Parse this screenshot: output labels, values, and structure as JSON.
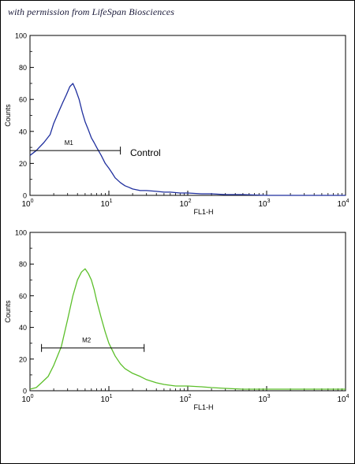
{
  "credit": "with permission from LifeSpan Biosciences",
  "chart_data": [
    {
      "type": "line",
      "xscale": "log",
      "xlim": [
        1,
        10000
      ],
      "ylim": [
        0,
        100
      ],
      "xlabel": "FL1-H",
      "ylabel": "Counts",
      "xticks": [
        "10",
        "10",
        "10",
        "10",
        "10"
      ],
      "xtick_exps": [
        "0",
        "1",
        "2",
        "3",
        "4"
      ],
      "yticks": [
        "0",
        "20",
        "40",
        "60",
        "80",
        "100"
      ],
      "series": [
        {
          "name": "Control",
          "color": "#1f2f9e",
          "x": [
            1,
            1.2,
            1.5,
            1.8,
            2.0,
            2.3,
            2.6,
            2.9,
            3.2,
            3.5,
            3.8,
            4.2,
            4.6,
            5.0,
            5.5,
            6.0,
            6.5,
            7.0,
            8.0,
            9.0,
            10,
            11,
            12,
            14,
            16,
            18,
            20,
            25,
            30,
            40,
            50,
            60,
            80,
            100,
            150,
            200,
            300,
            500,
            1000,
            10000
          ],
          "y": [
            25,
            28,
            33,
            38,
            45,
            52,
            58,
            63,
            68,
            70,
            66,
            60,
            52,
            46,
            41,
            36,
            33,
            30,
            25,
            20,
            17,
            14,
            11,
            8,
            6,
            5,
            4,
            3,
            3,
            2.5,
            2,
            2,
            1.5,
            1.5,
            1,
            1,
            0.5,
            0.5,
            0,
            0
          ]
        }
      ],
      "markers": [
        {
          "label": "M1",
          "x_start": 1,
          "x_end": 14,
          "y": 28
        }
      ],
      "annotations": [
        {
          "text": "Control"
        }
      ]
    },
    {
      "type": "line",
      "xscale": "log",
      "xlim": [
        1,
        10000
      ],
      "ylim": [
        0,
        100
      ],
      "xlabel": "FL1-H",
      "ylabel": "Counts",
      "xticks": [
        "10",
        "10",
        "10",
        "10",
        "10"
      ],
      "xtick_exps": [
        "0",
        "1",
        "2",
        "3",
        "4"
      ],
      "yticks": [
        "0",
        "20",
        "40",
        "60",
        "80",
        "100"
      ],
      "series": [
        {
          "color": "#5cbf2a",
          "x": [
            1,
            1.2,
            1.4,
            1.7,
            2.0,
            2.5,
            3.0,
            3.5,
            4.0,
            4.5,
            5.0,
            5.5,
            6.0,
            6.5,
            7.0,
            8.0,
            9.0,
            10,
            12,
            14,
            16,
            20,
            25,
            30,
            40,
            50,
            70,
            100,
            150,
            200,
            300,
            500,
            1000,
            2000,
            4000,
            10000
          ],
          "y": [
            1,
            2,
            5,
            9,
            16,
            28,
            45,
            60,
            70,
            75,
            77,
            74,
            70,
            64,
            57,
            46,
            37,
            30,
            22,
            17,
            14,
            11,
            9,
            7,
            5,
            4,
            3,
            3,
            2.5,
            2,
            1.5,
            1,
            1,
            1,
            1,
            1
          ]
        }
      ],
      "markers": [
        {
          "label": "M2",
          "x_start": 1.4,
          "x_end": 28,
          "y": 27
        }
      ]
    }
  ]
}
